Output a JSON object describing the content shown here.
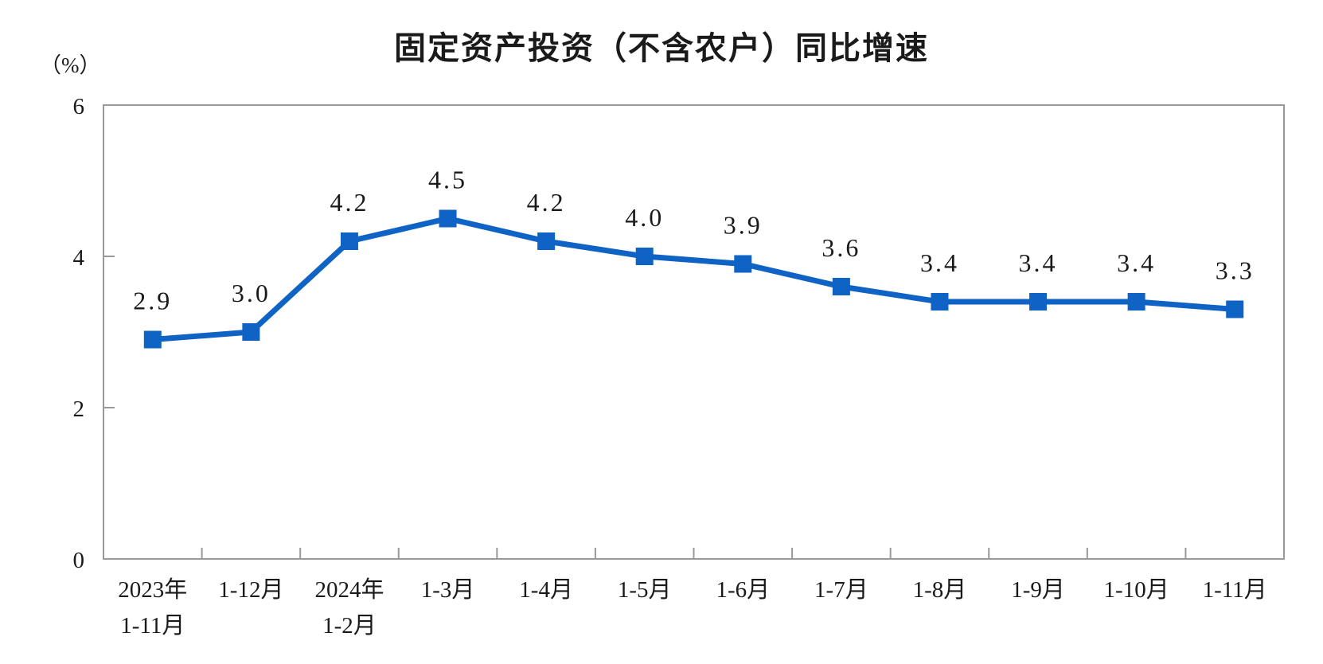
{
  "chart_data": {
    "type": "line",
    "title": "固定资产投资（不含农户）同比增速",
    "unit_label": "（%）",
    "categories": [
      "2023年\n1-11月",
      "1-12月",
      "2024年\n1-2月",
      "1-3月",
      "1-4月",
      "1-5月",
      "1-6月",
      "1-7月",
      "1-8月",
      "1-9月",
      "1-10月",
      "1-11月"
    ],
    "values": [
      2.9,
      3.0,
      4.2,
      4.5,
      4.2,
      4.0,
      3.9,
      3.6,
      3.4,
      3.4,
      3.4,
      3.3
    ],
    "data_labels": [
      "2.9",
      "3.0",
      "4.2",
      "4.5",
      "4.2",
      "4.0",
      "3.9",
      "3.6",
      "3.4",
      "3.4",
      "3.4",
      "3.3"
    ],
    "xlabel": "",
    "ylabel": "（%）",
    "ylim": [
      0,
      6
    ],
    "yticks": [
      0,
      2,
      4,
      6
    ],
    "grid": false,
    "legend": null,
    "marker": "square",
    "colors": {
      "line": "#0f63c4",
      "axis": "#999999",
      "text": "#1a1a1a",
      "title": "#1a1a1a",
      "background": "#ffffff"
    }
  }
}
